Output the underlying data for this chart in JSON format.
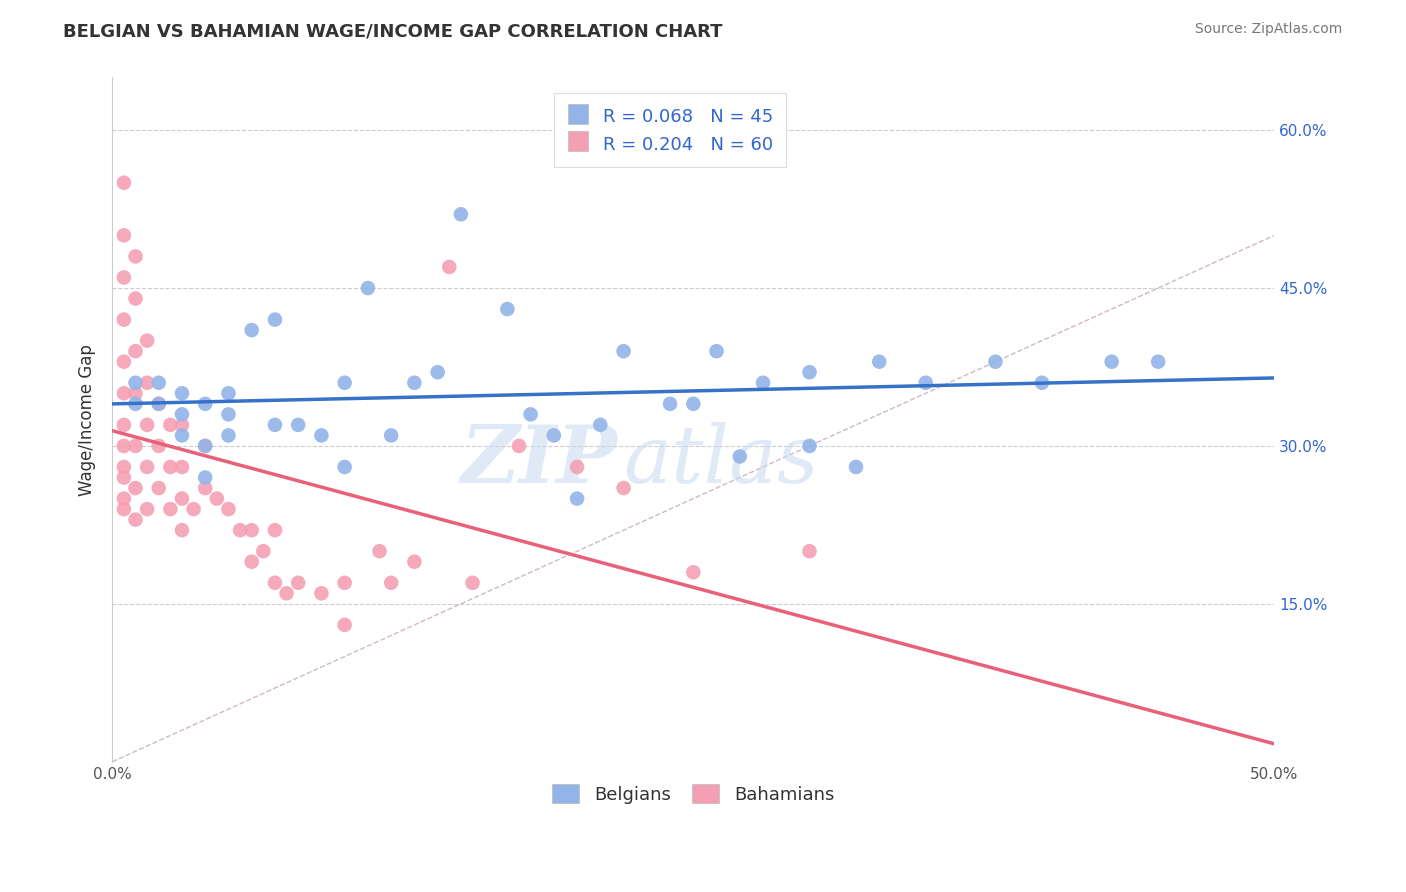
{
  "title": "BELGIAN VS BAHAMIAN WAGE/INCOME GAP CORRELATION CHART",
  "source": "Source: ZipAtlas.com",
  "ylabel": "Wage/Income Gap",
  "xmin": 0.0,
  "xmax": 0.5,
  "ymin": 0.0,
  "ymax": 0.65,
  "yticks": [
    0.15,
    0.3,
    0.45,
    0.6
  ],
  "ytick_labels": [
    "15.0%",
    "30.0%",
    "45.0%",
    "60.0%"
  ],
  "xticks": [
    0.0,
    0.1,
    0.2,
    0.3,
    0.4,
    0.5
  ],
  "xtick_labels": [
    "0.0%",
    "",
    "",
    "",
    "",
    "50.0%"
  ],
  "watermark_part1": "ZIP",
  "watermark_part2": "atlas",
  "belgian_color": "#92b4e8",
  "bahamian_color": "#f4a0b4",
  "trend_belgian_color": "#3672c8",
  "trend_bahamian_color": "#e8607a",
  "diagonal_color": "#d0b8c8",
  "R_belgian": 0.068,
  "N_belgian": 45,
  "R_bahamian": 0.204,
  "N_bahamian": 60,
  "belgians_x": [
    0.01,
    0.01,
    0.02,
    0.02,
    0.03,
    0.03,
    0.03,
    0.04,
    0.04,
    0.04,
    0.05,
    0.05,
    0.05,
    0.06,
    0.07,
    0.07,
    0.08,
    0.09,
    0.1,
    0.1,
    0.11,
    0.12,
    0.13,
    0.14,
    0.15,
    0.17,
    0.18,
    0.19,
    0.2,
    0.21,
    0.22,
    0.24,
    0.25,
    0.26,
    0.27,
    0.28,
    0.3,
    0.3,
    0.32,
    0.33,
    0.35,
    0.38,
    0.4,
    0.43,
    0.45
  ],
  "belgians_y": [
    0.34,
    0.36,
    0.34,
    0.36,
    0.31,
    0.33,
    0.35,
    0.27,
    0.3,
    0.34,
    0.31,
    0.33,
    0.35,
    0.41,
    0.32,
    0.42,
    0.32,
    0.31,
    0.28,
    0.36,
    0.45,
    0.31,
    0.36,
    0.37,
    0.52,
    0.43,
    0.33,
    0.31,
    0.25,
    0.32,
    0.39,
    0.34,
    0.34,
    0.39,
    0.29,
    0.36,
    0.37,
    0.3,
    0.28,
    0.38,
    0.36,
    0.38,
    0.36,
    0.38,
    0.38
  ],
  "bahamians_x": [
    0.005,
    0.005,
    0.005,
    0.005,
    0.005,
    0.005,
    0.005,
    0.005,
    0.005,
    0.005,
    0.005,
    0.005,
    0.01,
    0.01,
    0.01,
    0.01,
    0.01,
    0.01,
    0.01,
    0.015,
    0.015,
    0.015,
    0.015,
    0.015,
    0.02,
    0.02,
    0.02,
    0.025,
    0.025,
    0.025,
    0.03,
    0.03,
    0.03,
    0.03,
    0.035,
    0.04,
    0.04,
    0.045,
    0.05,
    0.055,
    0.06,
    0.06,
    0.065,
    0.07,
    0.07,
    0.075,
    0.08,
    0.09,
    0.1,
    0.1,
    0.115,
    0.12,
    0.13,
    0.145,
    0.155,
    0.175,
    0.2,
    0.22,
    0.25,
    0.3
  ],
  "bahamians_y": [
    0.55,
    0.5,
    0.46,
    0.42,
    0.38,
    0.35,
    0.32,
    0.3,
    0.28,
    0.27,
    0.25,
    0.24,
    0.48,
    0.44,
    0.39,
    0.35,
    0.3,
    0.26,
    0.23,
    0.4,
    0.36,
    0.32,
    0.28,
    0.24,
    0.34,
    0.3,
    0.26,
    0.32,
    0.28,
    0.24,
    0.32,
    0.28,
    0.25,
    0.22,
    0.24,
    0.3,
    0.26,
    0.25,
    0.24,
    0.22,
    0.22,
    0.19,
    0.2,
    0.22,
    0.17,
    0.16,
    0.17,
    0.16,
    0.13,
    0.17,
    0.2,
    0.17,
    0.19,
    0.47,
    0.17,
    0.3,
    0.28,
    0.26,
    0.18,
    0.2
  ]
}
